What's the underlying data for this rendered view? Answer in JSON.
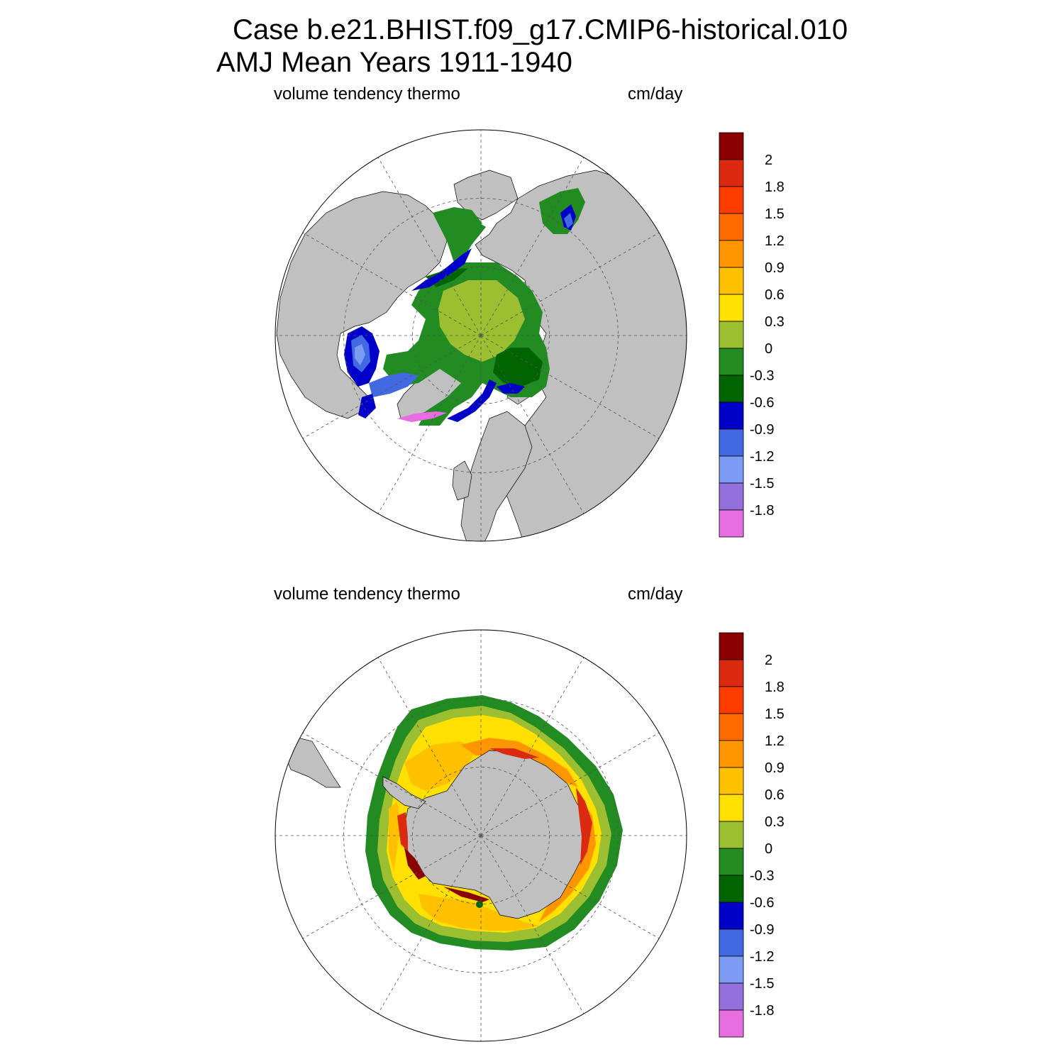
{
  "title": {
    "line1": "Case b.e21.BHIST.f09_g17.CMIP6-historical.010",
    "line2": "AMJ Mean   Years 1911-1940"
  },
  "panels": [
    {
      "name": "north-hemisphere-map",
      "left_label": "volume tendency thermo",
      "right_label": "cm/day"
    },
    {
      "name": "south-hemisphere-map",
      "left_label": "volume tendency thermo",
      "right_label": "cm/day"
    }
  ],
  "colorbar": {
    "labels": [
      "2",
      "1.8",
      "1.5",
      "1.2",
      "0.9",
      "0.6",
      "0.3",
      "0",
      "-0.3",
      "-0.6",
      "-0.9",
      "-1.2",
      "-1.5",
      "-1.8"
    ],
    "colors": [
      "#8b0000",
      "#dc2a10",
      "#ff3c00",
      "#ff6a00",
      "#ff9600",
      "#ffc000",
      "#ffe000",
      "#9bbf30",
      "#228b22",
      "#006400",
      "#0000c8",
      "#4169e1",
      "#7b9cf2",
      "#9370db",
      "#e76ee0"
    ]
  },
  "colors": {
    "land": "#c0c0c0",
    "ocean": "#ffffff",
    "grid": "#555555"
  }
}
